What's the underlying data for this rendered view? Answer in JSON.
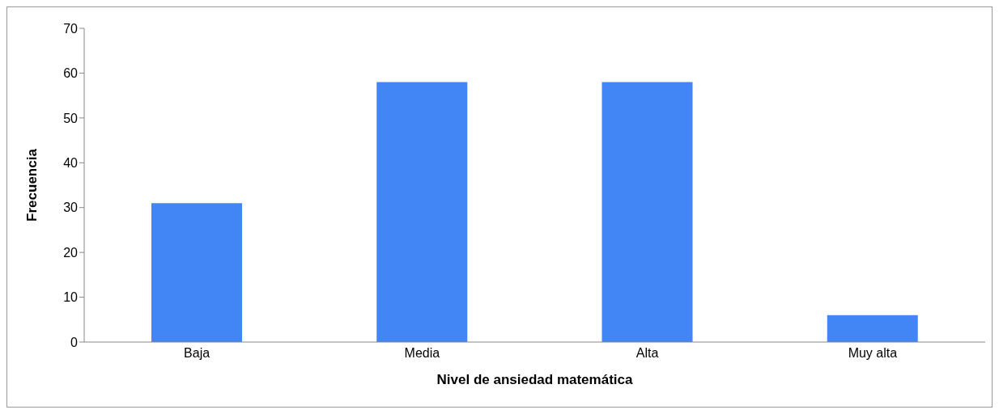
{
  "chart_data": {
    "type": "bar",
    "xlabel": "Nivel de ansiedad matemática",
    "ylabel": "Frecuencia",
    "categories": [
      "Baja",
      "Media",
      "Alta",
      "Muy alta"
    ],
    "values": [
      31,
      58,
      58,
      6
    ],
    "color": "#4285f4",
    "ylim": [
      0,
      70
    ],
    "yticks": [
      0,
      10,
      20,
      30,
      40,
      50,
      60,
      70
    ],
    "grid": false,
    "legend": false
  }
}
